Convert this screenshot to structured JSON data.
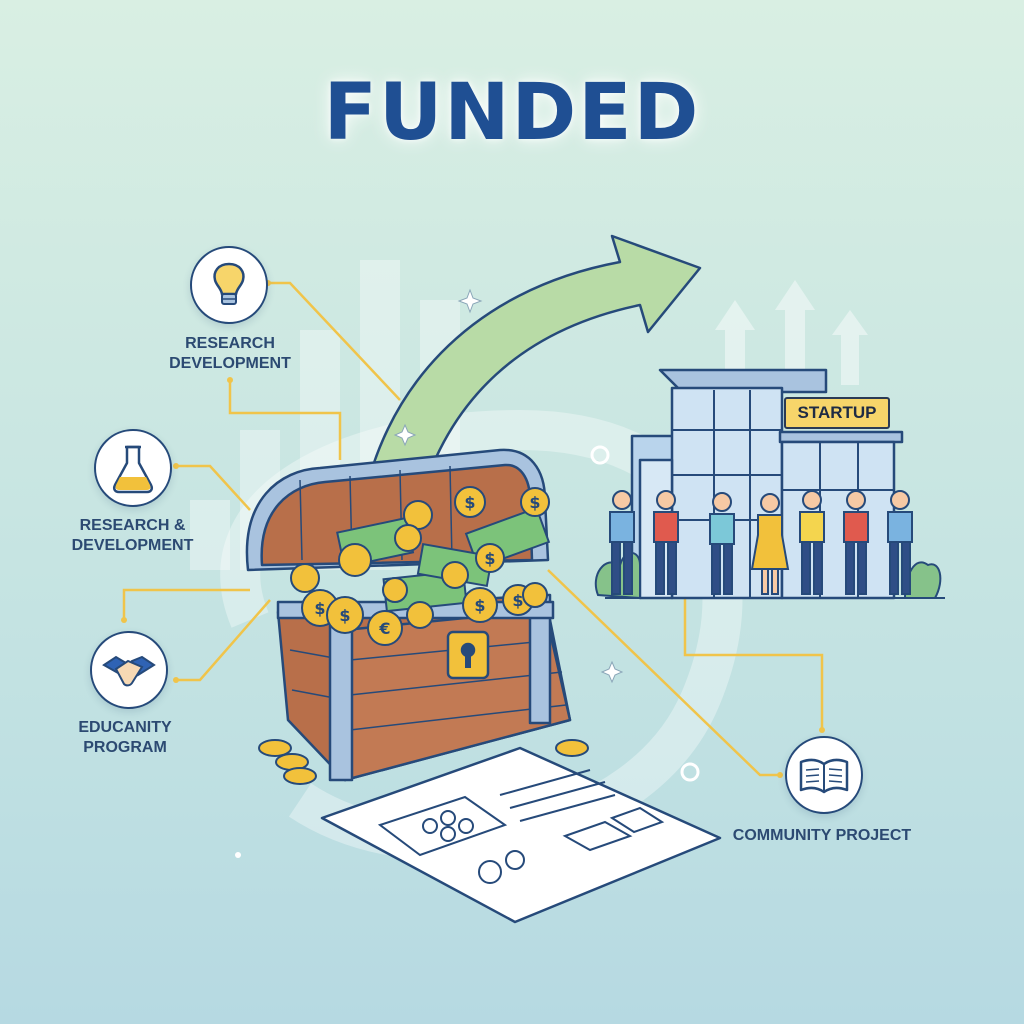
{
  "title": "FUNDED",
  "items": [
    {
      "line1": "RESEARCH",
      "line2": "DEVELOPMENT",
      "icon": "lightbulb-icon"
    },
    {
      "line1": "RESEARCH &",
      "line2": "DEVELOPMENT",
      "icon": "flask-icon"
    },
    {
      "line1": "EDUCANITY",
      "line2": "PROGRAM",
      "icon": "handshake-icon"
    },
    {
      "line1": "COMMUNITY PROJECT",
      "line2": "",
      "icon": "book-icon"
    }
  ],
  "building_sign": "STARTUP",
  "colors": {
    "title": "#1f4f93",
    "outline": "#264a7a",
    "connector": "#f0c44a",
    "arrow": "#b8dba6",
    "chest_wood": "#b86f4a",
    "coin": "#f2c13b"
  }
}
